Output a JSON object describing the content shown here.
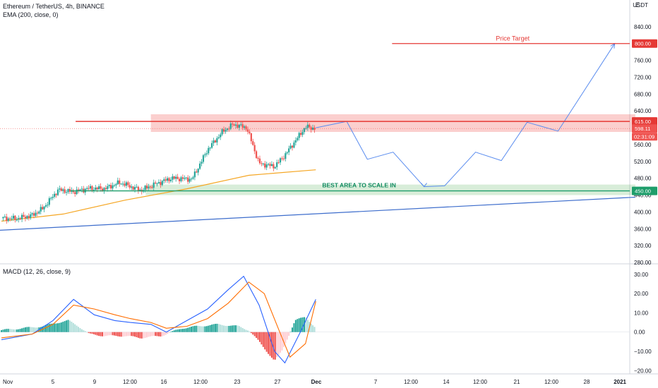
{
  "header": {
    "symbol_line": "Ethereum / TetherUS, 4h, BINANCE",
    "ema_label": "EMA (200, close, 0)",
    "macd_label": "MACD (12, 26, close, 9)",
    "currency": "USDT",
    "currency_marker": "E"
  },
  "colors": {
    "bull": "#26a69a",
    "bear": "#ef5350",
    "ema": "#f5a623",
    "trend": "#3d6dcc",
    "resistance": "#e53935",
    "support": "#1e9e6b",
    "macd_line": "#2962ff",
    "signal_line": "#ff6d00",
    "hist_pos": "#26a69a",
    "hist_neg": "#ef5350"
  },
  "chart_data": [
    {
      "type": "candlestick",
      "title": "Ethereum / TetherUS, 4h, BINANCE",
      "ylabel": "USDT",
      "ylim": [
        280,
        880
      ],
      "y_ticks": [
        280,
        320,
        360,
        400,
        440,
        480,
        520,
        560,
        600,
        640,
        680,
        720,
        760,
        800,
        840
      ],
      "y_tick_labels": [
        "280.00",
        "320.00",
        "360.00",
        "400.00",
        "440.00",
        "480.00",
        "520.00",
        "560.00",
        "600.00",
        "640.00",
        "680.00",
        "720.00",
        "760.00",
        "800.00",
        "840.00"
      ],
      "x_tick_labels": [
        "Nov",
        "5",
        "9",
        "12:00",
        "16",
        "12:00",
        "23",
        "27",
        "Dec",
        "7",
        "12:00",
        "14",
        "12:00",
        "21",
        "12:00",
        "28",
        "2021"
      ],
      "price_series": [
        {
          "d": 0,
          "v": 385
        },
        {
          "d": 1.5,
          "v": 384
        },
        {
          "d": 3,
          "v": 392
        },
        {
          "d": 4,
          "v": 408
        },
        {
          "d": 5.5,
          "v": 452
        },
        {
          "d": 7,
          "v": 448
        },
        {
          "d": 8.5,
          "v": 456
        },
        {
          "d": 10,
          "v": 455
        },
        {
          "d": 11.5,
          "v": 470
        },
        {
          "d": 13.5,
          "v": 451
        },
        {
          "d": 15,
          "v": 467
        },
        {
          "d": 16.5,
          "v": 480
        },
        {
          "d": 18.5,
          "v": 478
        },
        {
          "d": 20,
          "v": 548
        },
        {
          "d": 21.5,
          "v": 592
        },
        {
          "d": 22.5,
          "v": 608
        },
        {
          "d": 23.8,
          "v": 600
        },
        {
          "d": 25,
          "v": 515
        },
        {
          "d": 26.5,
          "v": 508
        },
        {
          "d": 27.5,
          "v": 535
        },
        {
          "d": 29.5,
          "v": 602
        },
        {
          "d": 30.5,
          "v": 598
        }
      ],
      "ema200": {
        "label": "EMA (200, close, 0)",
        "points": [
          {
            "d": 0,
            "v": 378
          },
          {
            "d": 6,
            "v": 395
          },
          {
            "d": 12,
            "v": 428
          },
          {
            "d": 18,
            "v": 455
          },
          {
            "d": 24,
            "v": 487
          },
          {
            "d": 30.5,
            "v": 500
          }
        ]
      },
      "projection": {
        "points": [
          {
            "d": 30.5,
            "v": 600
          },
          {
            "d": 33.5,
            "v": 615
          },
          {
            "d": 35.5,
            "v": 525
          },
          {
            "d": 38,
            "v": 542
          },
          {
            "d": 41,
            "v": 460
          },
          {
            "d": 43,
            "v": 462
          },
          {
            "d": 46,
            "v": 542
          },
          {
            "d": 48.5,
            "v": 522
          },
          {
            "d": 51,
            "v": 613
          },
          {
            "d": 54,
            "v": 592
          },
          {
            "d": 59.5,
            "v": 800
          }
        ]
      },
      "trendline": {
        "points": [
          {
            "d": -0.5,
            "v": 356
          },
          {
            "d": 61.5,
            "v": 435
          }
        ]
      },
      "levels": [
        {
          "name": "resistance",
          "value": 615.0,
          "label": "615.00"
        },
        {
          "name": "price_target",
          "value": 800.0,
          "label": "800.00",
          "text": "Price Target"
        },
        {
          "name": "scale_in",
          "value": 450.0,
          "label": "450.00",
          "text": "BEST AREA TO SCALE IN"
        }
      ],
      "zones": [
        {
          "name": "resistance_zone",
          "y_range": [
            590,
            632
          ],
          "d_range": [
            14.5,
            61.5
          ]
        },
        {
          "name": "support_zone",
          "y_range": [
            440,
            465
          ],
          "d_range": [
            14,
            61.5
          ]
        }
      ],
      "current_price": {
        "value": 598.11,
        "label": "598.11",
        "countdown": "02:31:09"
      }
    },
    {
      "type": "line",
      "title": "MACD (12, 26, close, 9)",
      "ylim": [
        -21,
        34
      ],
      "y_ticks": [
        -20,
        -10,
        0,
        10,
        20,
        30
      ],
      "y_tick_labels": [
        "−20.00",
        "−10.00",
        "0.00",
        "10.00",
        "20.00",
        "30.00"
      ],
      "series": [
        {
          "key": "macd",
          "points": [
            {
              "d": 0,
              "v": -4
            },
            {
              "d": 3,
              "v": -1
            },
            {
              "d": 5,
              "v": 6
            },
            {
              "d": 7,
              "v": 17
            },
            {
              "d": 9,
              "v": 9
            },
            {
              "d": 11,
              "v": 6
            },
            {
              "d": 12.5,
              "v": 5
            },
            {
              "d": 14.5,
              "v": 4
            },
            {
              "d": 16,
              "v": 0
            },
            {
              "d": 18,
              "v": 6
            },
            {
              "d": 20,
              "v": 12
            },
            {
              "d": 22,
              "v": 22
            },
            {
              "d": 23.5,
              "v": 29
            },
            {
              "d": 25,
              "v": 14
            },
            {
              "d": 26.5,
              "v": -10
            },
            {
              "d": 27.5,
              "v": -16
            },
            {
              "d": 29,
              "v": 0
            },
            {
              "d": 30.5,
              "v": 17
            }
          ]
        },
        {
          "key": "signal",
          "points": [
            {
              "d": 0,
              "v": -3
            },
            {
              "d": 3,
              "v": -1
            },
            {
              "d": 5,
              "v": 4
            },
            {
              "d": 7,
              "v": 14
            },
            {
              "d": 9,
              "v": 12
            },
            {
              "d": 11,
              "v": 9
            },
            {
              "d": 12.5,
              "v": 7
            },
            {
              "d": 14.5,
              "v": 5
            },
            {
              "d": 16,
              "v": 2
            },
            {
              "d": 18,
              "v": 3
            },
            {
              "d": 20,
              "v": 7
            },
            {
              "d": 22,
              "v": 15
            },
            {
              "d": 24,
              "v": 26
            },
            {
              "d": 25.5,
              "v": 20
            },
            {
              "d": 27,
              "v": 0
            },
            {
              "d": 28,
              "v": -13
            },
            {
              "d": 29.5,
              "v": -6
            },
            {
              "d": 30.5,
              "v": 16
            }
          ]
        }
      ],
      "histogram": {
        "points": [
          {
            "d": 0,
            "v": 1
          },
          {
            "d": 2,
            "v": 2
          },
          {
            "d": 4,
            "v": 3
          },
          {
            "d": 5.5,
            "v": 5
          },
          {
            "d": 6.5,
            "v": 6
          },
          {
            "d": 7.5,
            "v": 3
          },
          {
            "d": 8.5,
            "v": -1
          },
          {
            "d": 10,
            "v": -2
          },
          {
            "d": 12,
            "v": -2
          },
          {
            "d": 13.5,
            "v": -3
          },
          {
            "d": 15.5,
            "v": -2
          },
          {
            "d": 17.5,
            "v": 2
          },
          {
            "d": 19,
            "v": 3
          },
          {
            "d": 21,
            "v": 4
          },
          {
            "d": 23,
            "v": 3
          },
          {
            "d": 24,
            "v": 1
          },
          {
            "d": 25,
            "v": -5
          },
          {
            "d": 26.5,
            "v": -15
          },
          {
            "d": 27.2,
            "v": -10
          },
          {
            "d": 28.5,
            "v": 6
          },
          {
            "d": 29.5,
            "v": 8
          },
          {
            "d": 30.5,
            "v": 2
          }
        ]
      }
    }
  ]
}
